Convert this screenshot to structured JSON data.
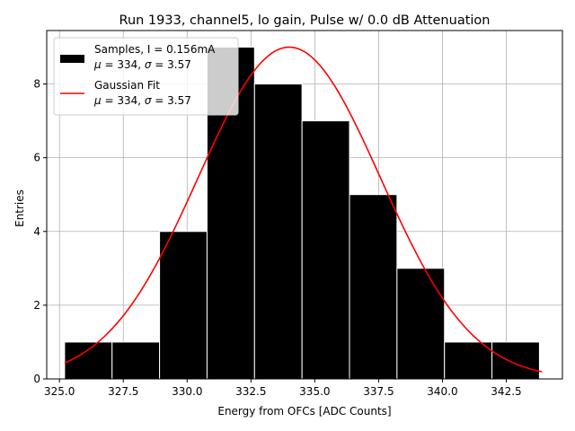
{
  "chart_data": {
    "type": "bar",
    "title": "Run 1933, channel5, lo gain, Pulse w/ 0.0 dB Attenuation",
    "xlabel": "Energy from OFCs [ADC Counts]",
    "ylabel": "Entries",
    "xlim": [
      324.5,
      344.7
    ],
    "ylim": [
      0,
      9.45
    ],
    "xticks": [
      325.0,
      327.5,
      330.0,
      332.5,
      335.0,
      337.5,
      340.0,
      342.5
    ],
    "xtick_labels": [
      "325.0",
      "327.5",
      "330.0",
      "332.5",
      "335.0",
      "337.5",
      "340.0",
      "342.5"
    ],
    "yticks": [
      0,
      2,
      4,
      6,
      8
    ],
    "ytick_labels": [
      "0",
      "2",
      "4",
      "6",
      "8"
    ],
    "grid": true,
    "histogram": {
      "name": "Samples, I = 0.156mA",
      "bin_edges": [
        325.2,
        327.06,
        328.92,
        330.78,
        332.64,
        334.5,
        336.36,
        338.22,
        340.08,
        341.94,
        343.8
      ],
      "counts": [
        1,
        1,
        4,
        9,
        8,
        7,
        5,
        3,
        1,
        1
      ],
      "color": "#000000"
    },
    "fit": {
      "name": "Gaussian Fit",
      "type": "gaussian",
      "mu": 334.0,
      "sigma": 3.57,
      "amplitude": 9.0,
      "x_range": [
        325.2,
        343.9
      ],
      "color": "#ff0000"
    },
    "legend": {
      "position": "upper-left",
      "entries": [
        {
          "line1": "Samples, I = 0.156mA",
          "line2_mu": "334",
          "line2_sigma": "3.57"
        },
        {
          "line1": "Gaussian Fit",
          "line2_mu": "334",
          "line2_sigma": "3.57"
        }
      ]
    }
  }
}
